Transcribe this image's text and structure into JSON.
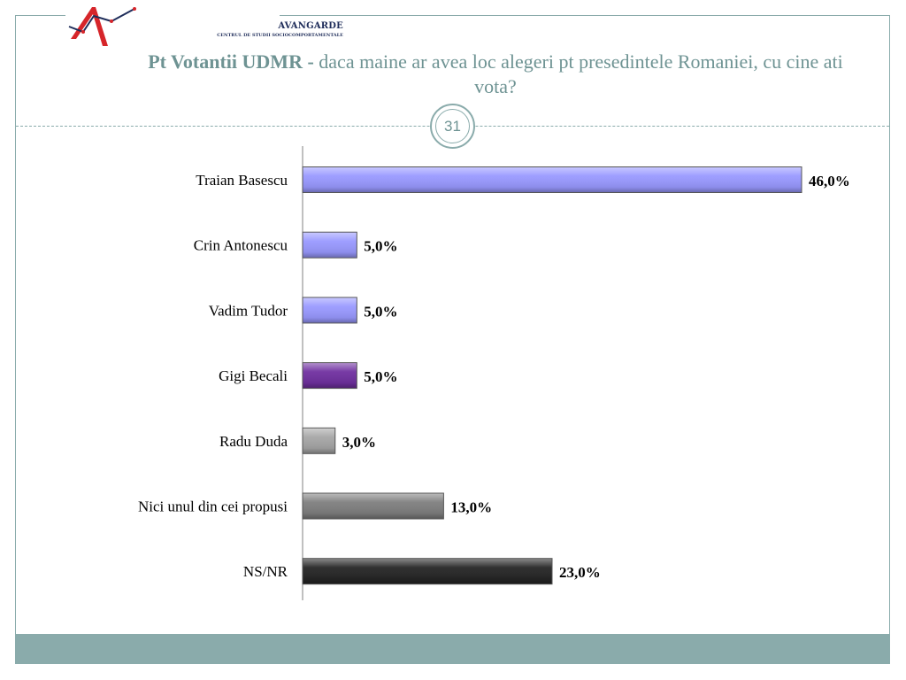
{
  "logo": {
    "name": "AVANGARDE",
    "subtitle": "CENTRUL DE STUDII SOCIOCOMPORTAMENTALE"
  },
  "title": {
    "bold_part": "Pt Votantii UDMR -",
    "rest": " daca maine ar avea loc alegeri pt presedintele Romaniei, cu cine ati vota?"
  },
  "page_number": "31",
  "colors": {
    "accent": "#8aabab",
    "title_text": "#6e9393"
  },
  "chart_data": {
    "type": "bar",
    "orientation": "horizontal",
    "categories": [
      "Traian Basescu",
      "Crin Antonescu",
      "Vadim Tudor",
      "Gigi Becali",
      "Radu Duda",
      "Nici unul din cei propusi",
      "NS/NR"
    ],
    "values": [
      46.0,
      5.0,
      5.0,
      5.0,
      3.0,
      13.0,
      23.0
    ],
    "value_labels": [
      "46,0%",
      "5,0%",
      "5,0%",
      "5,0%",
      "3,0%",
      "13,0%",
      "23,0%"
    ],
    "bar_colors": [
      "#9999ff",
      "#9999ff",
      "#9999ff",
      "#7030a0",
      "#a6a6a6",
      "#7f7f7f",
      "#262626"
    ],
    "xlim": [
      0,
      46
    ],
    "grid": false,
    "legend": "none"
  }
}
